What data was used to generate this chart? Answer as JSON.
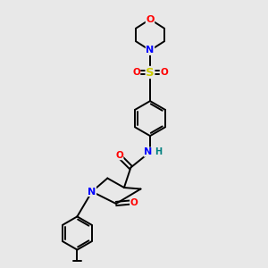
{
  "background_color": "#e8e8e8",
  "atom_colors": {
    "C": "#000000",
    "N": "#0000ff",
    "O": "#ff0000",
    "S": "#cccc00",
    "H": "#008080"
  },
  "bond_color": "#000000",
  "bond_width": 1.4,
  "font_size_atom": 7.5,
  "fig_size": [
    3.0,
    3.0
  ],
  "dpi": 100
}
